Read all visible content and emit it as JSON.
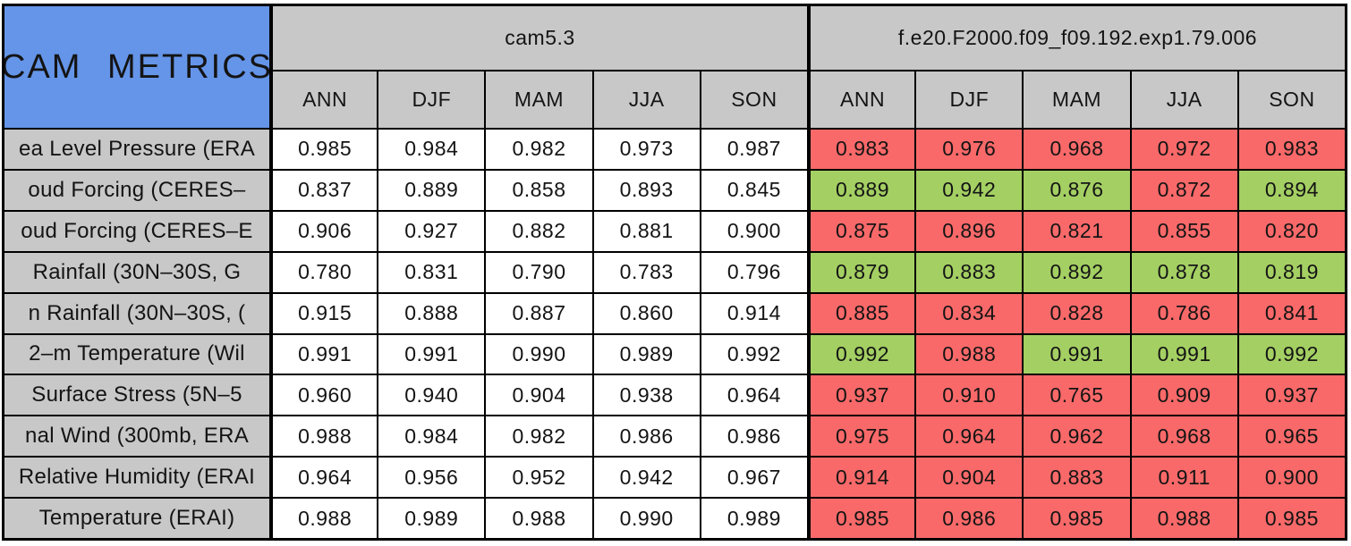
{
  "title": "CAM METRICS",
  "colors": {
    "title_bg": "#6595E8",
    "header_bg": "#C8C8C8",
    "value_bg": "#FFFFFF",
    "better_bg": "#A4CF63",
    "worse_bg": "#F96969",
    "border": "#000000"
  },
  "chart_data": {
    "type": "table",
    "title": "CAM METRICS",
    "column_groups": [
      {
        "label": "cam5.3",
        "span": 5
      },
      {
        "label": "f.e20.F2000.f09_f09.192.exp1.79.006",
        "span": 5
      }
    ],
    "seasons": [
      "ANN",
      "DJF",
      "MAM",
      "JJA",
      "SON"
    ],
    "legend_note": "experiment cells are green when better than cam5.3, red when worse",
    "rows": [
      {
        "label": "ea Level Pressure (ERA",
        "cam53": [
          "0.985",
          "0.984",
          "0.982",
          "0.973",
          "0.987"
        ],
        "exp": [
          "0.983",
          "0.976",
          "0.968",
          "0.972",
          "0.983"
        ],
        "exp_status": [
          "worse",
          "worse",
          "worse",
          "worse",
          "worse"
        ]
      },
      {
        "label": "oud Forcing (CERES–",
        "cam53": [
          "0.837",
          "0.889",
          "0.858",
          "0.893",
          "0.845"
        ],
        "exp": [
          "0.889",
          "0.942",
          "0.876",
          "0.872",
          "0.894"
        ],
        "exp_status": [
          "better",
          "better",
          "better",
          "worse",
          "better"
        ]
      },
      {
        "label": "oud Forcing (CERES–E",
        "cam53": [
          "0.906",
          "0.927",
          "0.882",
          "0.881",
          "0.900"
        ],
        "exp": [
          "0.875",
          "0.896",
          "0.821",
          "0.855",
          "0.820"
        ],
        "exp_status": [
          "worse",
          "worse",
          "worse",
          "worse",
          "worse"
        ]
      },
      {
        "label": "Rainfall (30N–30S, G",
        "cam53": [
          "0.780",
          "0.831",
          "0.790",
          "0.783",
          "0.796"
        ],
        "exp": [
          "0.879",
          "0.883",
          "0.892",
          "0.878",
          "0.819"
        ],
        "exp_status": [
          "better",
          "better",
          "better",
          "better",
          "better"
        ]
      },
      {
        "label": "n Rainfall (30N–30S, (",
        "cam53": [
          "0.915",
          "0.888",
          "0.887",
          "0.860",
          "0.914"
        ],
        "exp": [
          "0.885",
          "0.834",
          "0.828",
          "0.786",
          "0.841"
        ],
        "exp_status": [
          "worse",
          "worse",
          "worse",
          "worse",
          "worse"
        ]
      },
      {
        "label": "2–m Temperature (Wil",
        "cam53": [
          "0.991",
          "0.991",
          "0.990",
          "0.989",
          "0.992"
        ],
        "exp": [
          "0.992",
          "0.988",
          "0.991",
          "0.991",
          "0.992"
        ],
        "exp_status": [
          "better",
          "worse",
          "better",
          "better",
          "better"
        ]
      },
      {
        "label": "Surface Stress (5N–5",
        "cam53": [
          "0.960",
          "0.940",
          "0.904",
          "0.938",
          "0.964"
        ],
        "exp": [
          "0.937",
          "0.910",
          "0.765",
          "0.909",
          "0.937"
        ],
        "exp_status": [
          "worse",
          "worse",
          "worse",
          "worse",
          "worse"
        ]
      },
      {
        "label": "nal Wind (300mb, ERA",
        "cam53": [
          "0.988",
          "0.984",
          "0.982",
          "0.986",
          "0.986"
        ],
        "exp": [
          "0.975",
          "0.964",
          "0.962",
          "0.968",
          "0.965"
        ],
        "exp_status": [
          "worse",
          "worse",
          "worse",
          "worse",
          "worse"
        ]
      },
      {
        "label": "Relative Humidity (ERAI",
        "cam53": [
          "0.964",
          "0.956",
          "0.952",
          "0.942",
          "0.967"
        ],
        "exp": [
          "0.914",
          "0.904",
          "0.883",
          "0.911",
          "0.900"
        ],
        "exp_status": [
          "worse",
          "worse",
          "worse",
          "worse",
          "worse"
        ]
      },
      {
        "label": "Temperature (ERAI)",
        "cam53": [
          "0.988",
          "0.989",
          "0.988",
          "0.990",
          "0.989"
        ],
        "exp": [
          "0.985",
          "0.986",
          "0.985",
          "0.988",
          "0.985"
        ],
        "exp_status": [
          "worse",
          "worse",
          "worse",
          "worse",
          "worse"
        ]
      }
    ]
  }
}
